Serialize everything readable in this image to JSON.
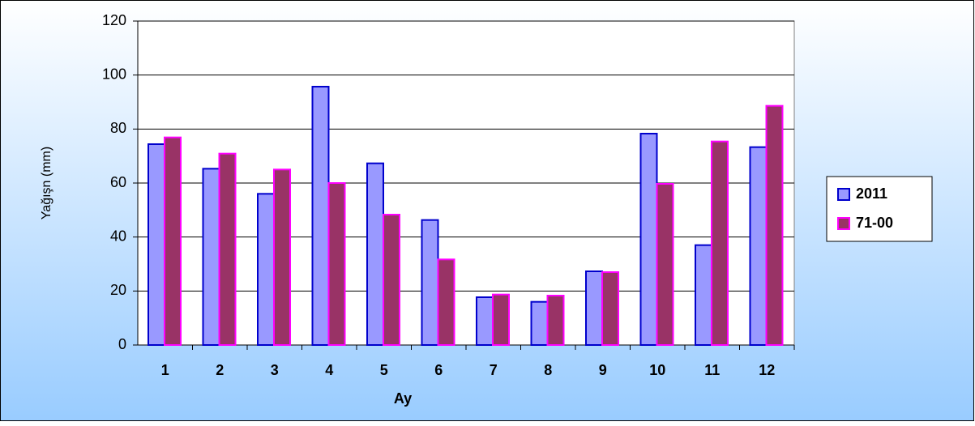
{
  "chart_data": {
    "type": "bar",
    "x_label": "Ay",
    "y_label": "Yağışn (mm)",
    "categories": [
      "1",
      "2",
      "3",
      "4",
      "5",
      "6",
      "7",
      "8",
      "9",
      "10",
      "11",
      "12"
    ],
    "series": [
      {
        "name": "2011",
        "color": "#9999ff",
        "values": [
          74.4,
          65.3,
          56,
          95.7,
          67.3,
          46.3,
          17.7,
          16,
          27.3,
          78.3,
          37,
          73.3
        ]
      },
      {
        "name": "71-00",
        "color": "#993366",
        "values": [
          76.9,
          70.9,
          65,
          60,
          48.3,
          31.7,
          18.7,
          18.3,
          27,
          59.7,
          75.4,
          88.6
        ]
      }
    ],
    "ylim": [
      0,
      120
    ],
    "yticks": [
      0,
      20,
      40,
      60,
      80,
      100,
      120
    ],
    "grid": true,
    "legend": "right"
  }
}
